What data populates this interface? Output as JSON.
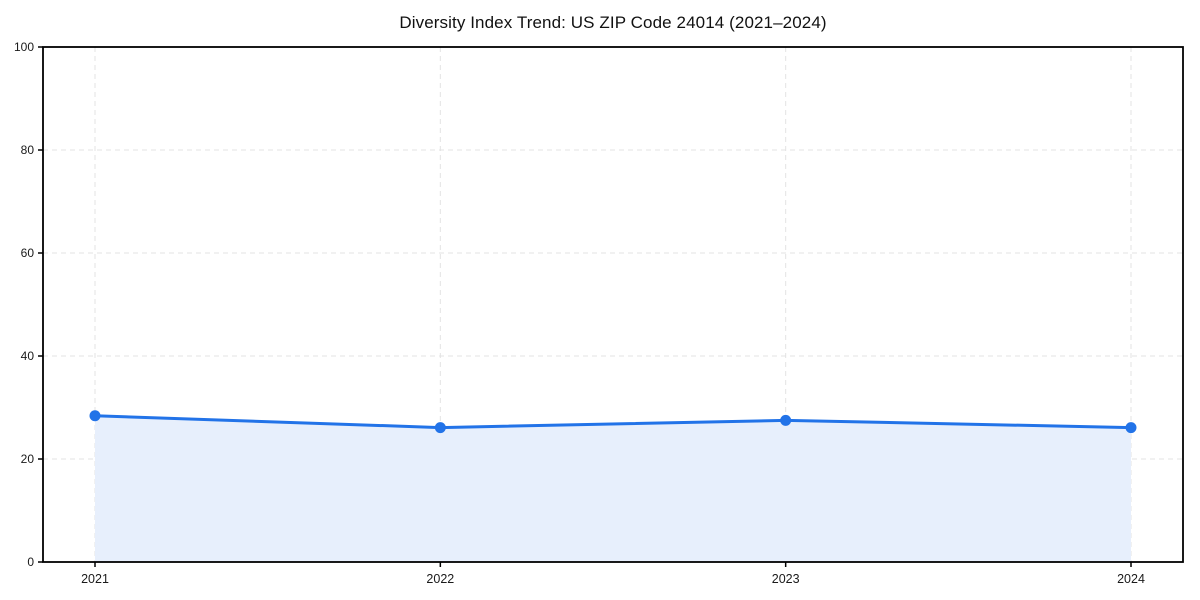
{
  "title": "Diversity Index Trend: US ZIP Code 24014 (2021–2024)",
  "chart_data": {
    "type": "area",
    "title": "Diversity Index Trend: US ZIP Code 24014 (2021–2024)",
    "categories": [
      "2021",
      "2022",
      "2023",
      "2024"
    ],
    "series": [
      {
        "name": "Diversity Index",
        "values": [
          28.4,
          26.1,
          27.5,
          26.1
        ]
      }
    ],
    "xlabel": "",
    "ylabel": "",
    "ylim": [
      0,
      100
    ],
    "yticks": [
      0,
      20,
      40,
      60,
      80,
      100
    ],
    "grid": true,
    "grid_style": "dashed",
    "legend_position": "none",
    "marker": "circle",
    "colors": {
      "line": "#2273e8",
      "marker": "#2273e8",
      "fill": "#e7effc",
      "grid": "#e3e3e3",
      "spine": "#000000",
      "tick_text": "#1a1a1a",
      "background": "#ffffff"
    }
  }
}
